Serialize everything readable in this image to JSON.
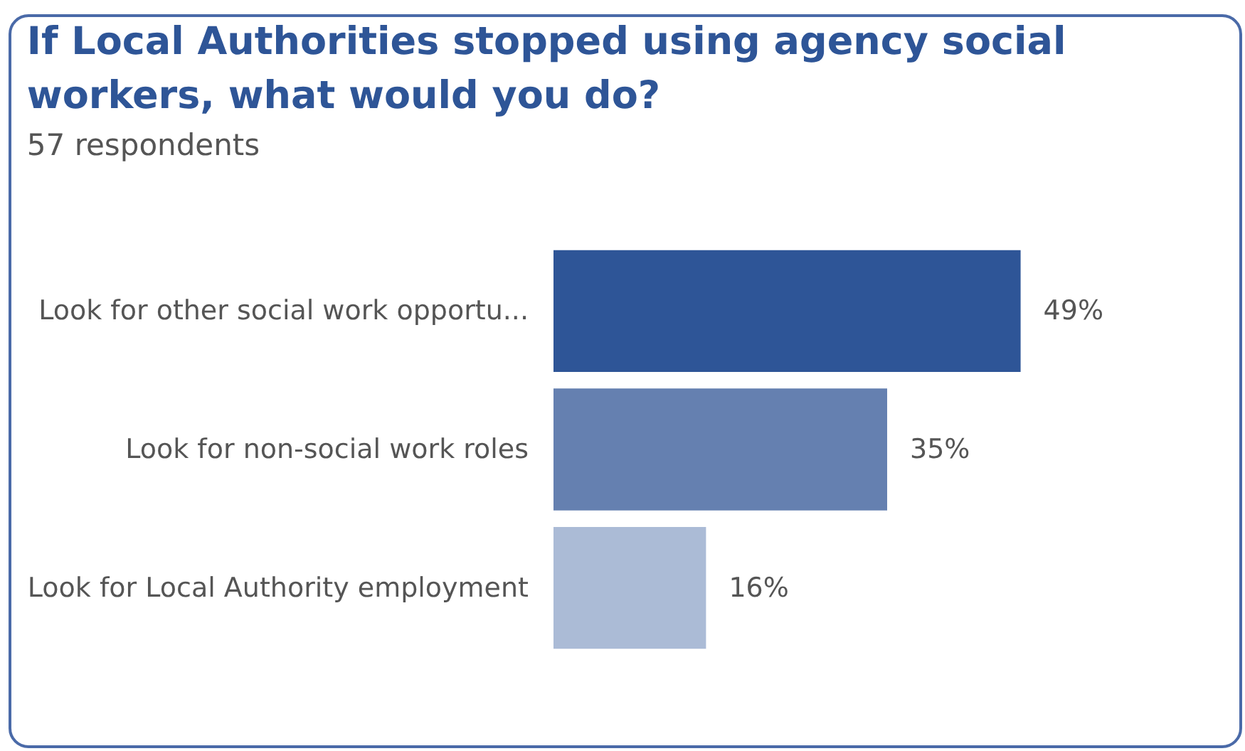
{
  "chart_data": {
    "type": "bar",
    "orientation": "horizontal",
    "title": "If Local Authorities stopped using agency social workers, what would you do?",
    "subtitle": "57 respondents",
    "categories": [
      "Look for other social work opportu...",
      "Look for non-social work roles",
      "Look for Local Authority employment"
    ],
    "values": [
      49,
      35,
      16
    ],
    "colors": [
      "#2e5597",
      "#6580b0",
      "#abbbd6"
    ],
    "value_labels": [
      "49%",
      "35%",
      "16%"
    ]
  }
}
